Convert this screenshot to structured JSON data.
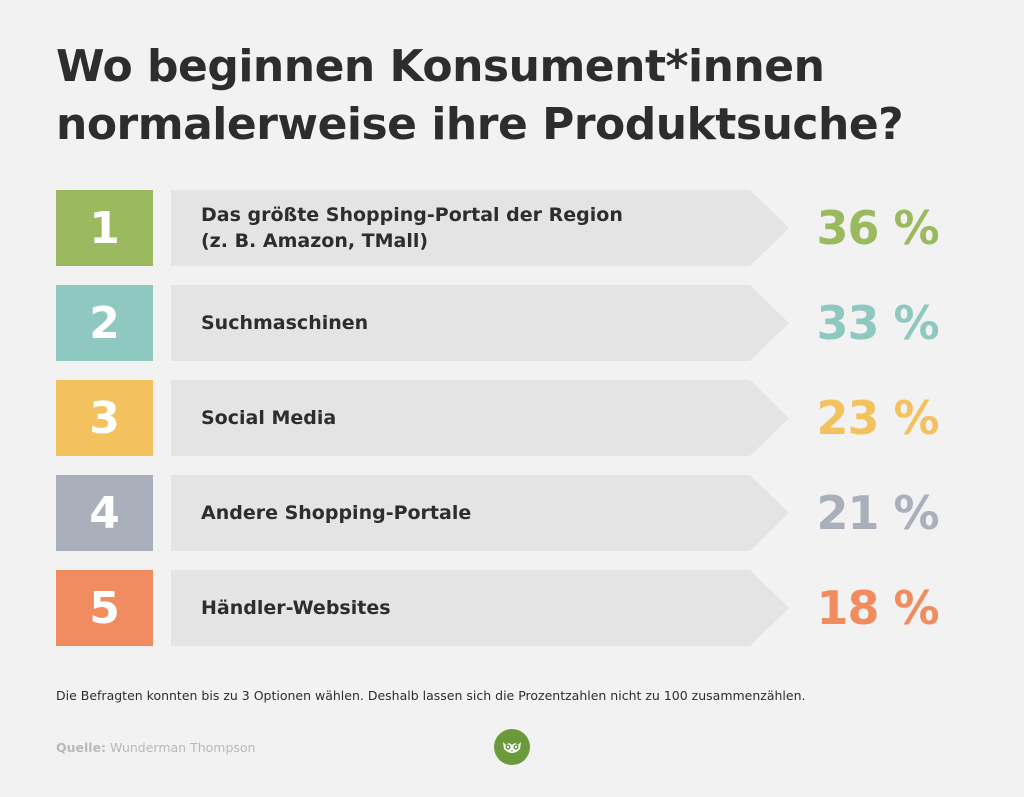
{
  "title": "Wo beginnen Konsument*innen normalerweise ihre Produktsuche?",
  "chart_data": {
    "type": "bar",
    "title": "Wo beginnen Konsument*innen normalerweise ihre Produktsuche?",
    "items": [
      {
        "rank": "1",
        "label": "Das größte Shopping-Portal der Region\n(z. B. Amazon, TMall)",
        "value": 36,
        "display": "36 %",
        "color": "#9bba5f"
      },
      {
        "rank": "2",
        "label": "Suchmaschinen",
        "value": 33,
        "display": "33 %",
        "color": "#8fc7c1"
      },
      {
        "rank": "3",
        "label": "Social Media",
        "value": 23,
        "display": "23 %",
        "color": "#f3c25f"
      },
      {
        "rank": "4",
        "label": "Andere Shopping-Portale",
        "value": 21,
        "display": "21 %",
        "color": "#a9afbb"
      },
      {
        "rank": "5",
        "label": "Händler-Websites",
        "value": 18,
        "display": "18 %",
        "color": "#f08c5f"
      }
    ]
  },
  "footnote": "Die Befragten konnten bis zu 3 Optionen wählen. Deshalb lassen sich die Prozentzahlen nicht zu 100 zusammenzählen.",
  "source": {
    "label": "Quelle:",
    "text": "Wunderman Thompson"
  },
  "logo": {
    "icon": "owl-icon",
    "color": "#6b9a3a"
  }
}
